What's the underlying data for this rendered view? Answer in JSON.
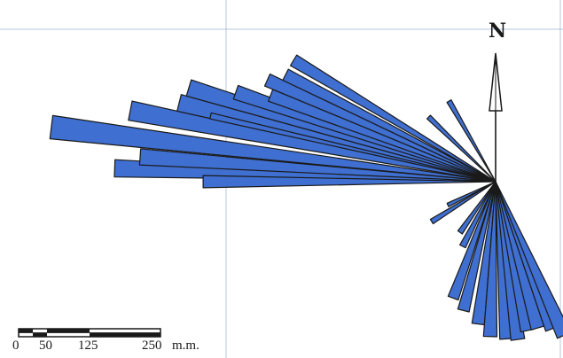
{
  "diagram": {
    "type": "rose-diagram",
    "north_label": "N",
    "colors": {
      "petal_fill": "#3f6fd0",
      "petal_stroke": "#1a1a1a",
      "gridline": "#8aa3c7",
      "background": "#ffffff"
    },
    "scale_bar": {
      "ticks": [
        "0",
        "50",
        "125",
        "250"
      ],
      "unit": "m.m."
    }
  }
}
